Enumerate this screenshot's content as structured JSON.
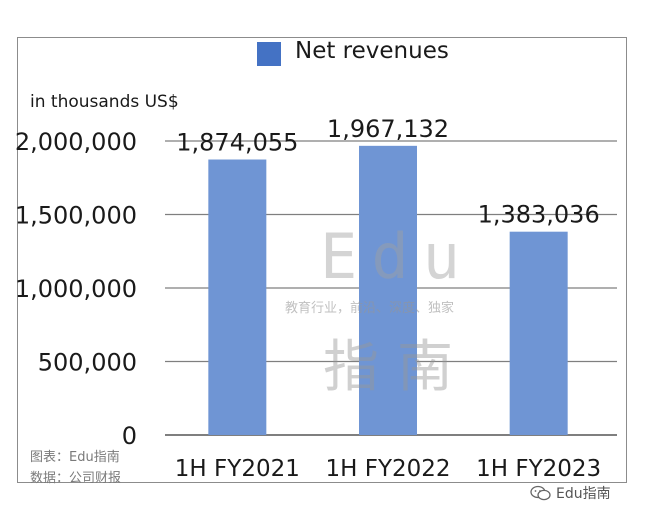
{
  "chart_data": {
    "type": "bar",
    "categories": [
      "1H FY2021",
      "1H FY2022",
      "1H FY2023"
    ],
    "series": [
      {
        "name": "Net revenues",
        "values": [
          1874055,
          1967132,
          1383036
        ]
      }
    ],
    "data_labels": [
      "1,874,055",
      "1,967,132",
      "1,383,036"
    ],
    "ylabel": "in thousands US$",
    "ylim": [
      0,
      2000000
    ],
    "yticks": [
      0,
      500000,
      1000000,
      1500000,
      2000000
    ],
    "ytick_labels": [
      "0",
      "500,000",
      "1,000,000",
      "1,500,000",
      "2,000,000"
    ],
    "grid": true,
    "legend": "top-center",
    "bar_color": "#6f95d4",
    "legend_color": "#4472c4"
  },
  "watermark": {
    "main": "Edu",
    "sub": "教育行业，前沿、深度、独家",
    "cn": "指南"
  },
  "source": {
    "chart_credit": "图表：Edu指南",
    "data_credit": "数据：公司财报"
  },
  "wechat": {
    "label": "Edu指南"
  }
}
